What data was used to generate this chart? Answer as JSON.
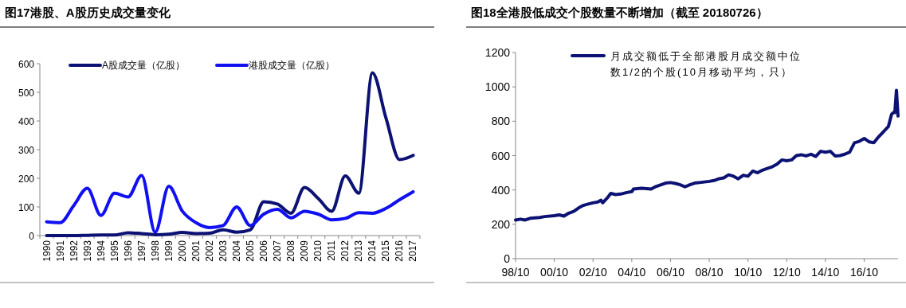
{
  "chart_data": [
    {
      "type": "line",
      "title": "图17港股、A股历史成交量变化",
      "categories": [
        "1990",
        "1991",
        "1992",
        "1993",
        "1994",
        "1995",
        "1996",
        "1997",
        "1998",
        "1999",
        "2000",
        "2001",
        "2002",
        "2003",
        "2004",
        "2005",
        "2006",
        "2007",
        "2008",
        "2009",
        "2010",
        "2011",
        "2012",
        "2013",
        "2014",
        "2015",
        "2016",
        "2017"
      ],
      "series": [
        {
          "name": "A股成交量（亿股）",
          "color": "#0c1273",
          "values": [
            0,
            0,
            0,
            1,
            2,
            2,
            10,
            7,
            3,
            5,
            11,
            7,
            8,
            20,
            12,
            20,
            118,
            110,
            78,
            168,
            130,
            85,
            208,
            148,
            568,
            410,
            265,
            280
          ]
        },
        {
          "name": "港股成交量（亿股）",
          "color": "#1010f0",
          "values": [
            48,
            45,
            105,
            165,
            70,
            148,
            135,
            210,
            12,
            172,
            85,
            45,
            28,
            35,
            100,
            35,
            75,
            92,
            62,
            85,
            75,
            55,
            60,
            80,
            78,
            95,
            125,
            153
          ]
        }
      ],
      "ylim": [
        0,
        600
      ],
      "yticks": [
        0,
        100,
        200,
        300,
        400,
        500,
        600
      ],
      "grid": false,
      "legend": "top",
      "marker": "none",
      "line_style": "solid"
    },
    {
      "type": "line",
      "title": "图18全港股低成交个股数量不断增加（截至 20180726）",
      "x": [
        "1998-10",
        "1999-01",
        "1999-04",
        "1999-07",
        "2000-01",
        "2000-04",
        "2000-10",
        "2001-01",
        "2001-04",
        "2001-07",
        "2001-10",
        "2002-01",
        "2002-04",
        "2002-07",
        "2002-10",
        "2003-01",
        "2003-03",
        "2003-04",
        "2003-07",
        "2003-09",
        "2003-12",
        "2004-04",
        "2004-07",
        "2004-10",
        "2004-11",
        "2005-04",
        "2005-10",
        "2006-01",
        "2006-07",
        "2006-10",
        "2007-01",
        "2007-04",
        "2007-07",
        "2007-10",
        "2008-01",
        "2008-04",
        "2008-10",
        "2009-01",
        "2009-04",
        "2009-07",
        "2009-10",
        "2010-01",
        "2010-04",
        "2010-07",
        "2010-10",
        "2011-01",
        "2011-04",
        "2011-07",
        "2011-10",
        "2012-01",
        "2012-04",
        "2012-07",
        "2012-10",
        "2013-01",
        "2013-04",
        "2013-07",
        "2013-10",
        "2014-01",
        "2014-04",
        "2014-07",
        "2014-10",
        "2015-01",
        "2015-04",
        "2015-07",
        "2015-10",
        "2016-01",
        "2016-04",
        "2016-07",
        "2016-10",
        "2017-01",
        "2017-04",
        "2017-07",
        "2017-10",
        "2018-01",
        "2018-03",
        "2018-04",
        "2018-05",
        "2018-06",
        "2018-07"
      ],
      "series": [
        {
          "name": "月成交额低于全部港股月成交额中位数1/2的个股(10月移动平均，只）",
          "color": "#0c1273",
          "values": [
            225,
            230,
            225,
            235,
            240,
            245,
            250,
            255,
            248,
            265,
            275,
            295,
            310,
            318,
            325,
            330,
            340,
            325,
            355,
            380,
            373,
            378,
            385,
            390,
            405,
            410,
            405,
            420,
            440,
            443,
            438,
            430,
            418,
            430,
            440,
            443,
            450,
            455,
            465,
            470,
            488,
            480,
            465,
            485,
            480,
            510,
            500,
            515,
            525,
            535,
            550,
            575,
            570,
            575,
            600,
            605,
            598,
            608,
            595,
            625,
            620,
            625,
            598,
            600,
            608,
            620,
            675,
            683,
            700,
            680,
            675,
            710,
            740,
            770,
            840,
            850,
            850,
            980,
            830
          ]
        }
      ],
      "xlim": [
        "1998-10",
        "2018-07"
      ],
      "xticks": [
        {
          "value": "1998-10",
          "label": "98/10"
        },
        {
          "value": "2000-10",
          "label": "00/10"
        },
        {
          "value": "2002-10",
          "label": "02/10"
        },
        {
          "value": "2004-10",
          "label": "04/10"
        },
        {
          "value": "2006-10",
          "label": "06/10"
        },
        {
          "value": "2008-10",
          "label": "08/10"
        },
        {
          "value": "2010-10",
          "label": "10/10"
        },
        {
          "value": "2012-10",
          "label": "12/10"
        },
        {
          "value": "2014-10",
          "label": "14/10"
        },
        {
          "value": "2016-10",
          "label": "16/10"
        }
      ],
      "ylim": [
        0,
        1200
      ],
      "yticks": [
        0,
        200,
        400,
        600,
        800,
        1000,
        1200
      ],
      "grid": false,
      "legend": "top",
      "marker": "none",
      "line_style": "solid"
    }
  ]
}
